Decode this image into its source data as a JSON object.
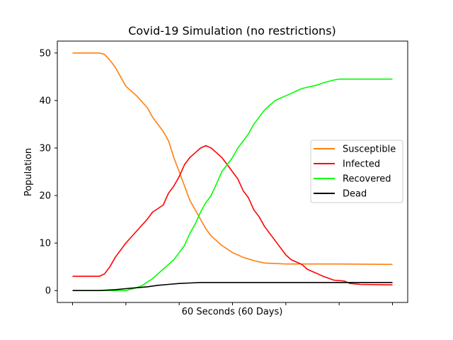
{
  "chart_data": {
    "type": "line",
    "title": "Covid-19 Simulation (no restrictions)",
    "xlabel": "60 Seconds (60 Days)",
    "ylabel": "Population",
    "xlim": [
      0,
      60
    ],
    "ylim": [
      -2.5,
      52.5
    ],
    "yticks": [
      0,
      10,
      20,
      30,
      40,
      50
    ],
    "xticks": [
      0,
      10,
      20,
      30,
      40,
      50,
      60
    ],
    "grid": false,
    "legend_position": "center-right",
    "series": [
      {
        "name": "Susceptible",
        "color": "#ff7f0e",
        "points": [
          [
            0,
            50
          ],
          [
            5,
            50
          ],
          [
            6,
            49.7
          ],
          [
            7,
            48.5
          ],
          [
            8,
            47
          ],
          [
            9,
            45
          ],
          [
            10,
            43
          ],
          [
            12,
            41
          ],
          [
            14,
            38.5
          ],
          [
            15,
            36.5
          ],
          [
            16,
            35
          ],
          [
            17,
            33.5
          ],
          [
            18,
            31.5
          ],
          [
            19,
            28
          ],
          [
            20,
            25
          ],
          [
            21,
            22
          ],
          [
            22,
            19
          ],
          [
            23,
            17
          ],
          [
            24,
            15
          ],
          [
            25,
            13
          ],
          [
            26,
            11.5
          ],
          [
            27,
            10.5
          ],
          [
            28,
            9.5
          ],
          [
            30,
            8
          ],
          [
            32,
            7
          ],
          [
            34,
            6.3
          ],
          [
            36,
            5.8
          ],
          [
            40,
            5.6
          ],
          [
            50,
            5.6
          ],
          [
            60,
            5.5
          ]
        ]
      },
      {
        "name": "Infected",
        "color": "#ff0000",
        "points": [
          [
            0,
            3
          ],
          [
            5,
            3
          ],
          [
            6,
            3.5
          ],
          [
            7,
            5
          ],
          [
            8,
            7
          ],
          [
            9,
            8.5
          ],
          [
            10,
            10
          ],
          [
            12,
            12.5
          ],
          [
            14,
            15
          ],
          [
            15,
            16.5
          ],
          [
            17,
            18
          ],
          [
            18,
            20.5
          ],
          [
            19,
            22
          ],
          [
            20,
            24
          ],
          [
            21,
            26.5
          ],
          [
            22,
            28
          ],
          [
            23,
            29
          ],
          [
            24,
            30
          ],
          [
            25,
            30.5
          ],
          [
            26,
            30
          ],
          [
            27,
            29
          ],
          [
            28,
            28
          ],
          [
            29,
            26.5
          ],
          [
            30,
            25
          ],
          [
            31,
            23.5
          ],
          [
            32,
            21
          ],
          [
            33,
            19.5
          ],
          [
            34,
            17
          ],
          [
            35,
            15.5
          ],
          [
            36,
            13.5
          ],
          [
            37,
            12
          ],
          [
            38,
            10.5
          ],
          [
            39,
            9
          ],
          [
            40,
            7.5
          ],
          [
            41,
            6.5
          ],
          [
            42,
            6
          ],
          [
            43,
            5.5
          ],
          [
            44,
            4.5
          ],
          [
            45,
            4
          ],
          [
            46,
            3.5
          ],
          [
            47,
            3
          ],
          [
            48,
            2.6
          ],
          [
            49,
            2.2
          ],
          [
            51,
            2
          ],
          [
            52,
            1.5
          ],
          [
            54,
            1.3
          ],
          [
            60,
            1.2
          ]
        ]
      },
      {
        "name": "Recovered",
        "color": "#00ff00",
        "points": [
          [
            0,
            0
          ],
          [
            10,
            0
          ],
          [
            11,
            0.3
          ],
          [
            12,
            0.6
          ],
          [
            13,
            1
          ],
          [
            14,
            1.8
          ],
          [
            15,
            2.5
          ],
          [
            16,
            3.5
          ],
          [
            17,
            4.5
          ],
          [
            18,
            5.5
          ],
          [
            19,
            6.5
          ],
          [
            20,
            8
          ],
          [
            21,
            9.5
          ],
          [
            22,
            12
          ],
          [
            23,
            14
          ],
          [
            24,
            16.5
          ],
          [
            25,
            18.5
          ],
          [
            26,
            20
          ],
          [
            27,
            22.5
          ],
          [
            28,
            25
          ],
          [
            29,
            26.5
          ],
          [
            30,
            28
          ],
          [
            31,
            30
          ],
          [
            32,
            31.5
          ],
          [
            33,
            33
          ],
          [
            34,
            35
          ],
          [
            35,
            36.5
          ],
          [
            36,
            38
          ],
          [
            37,
            39
          ],
          [
            38,
            40
          ],
          [
            39,
            40.5
          ],
          [
            40,
            41
          ],
          [
            41,
            41.5
          ],
          [
            42,
            42
          ],
          [
            43,
            42.5
          ],
          [
            44,
            42.8
          ],
          [
            45,
            43
          ],
          [
            46,
            43.3
          ],
          [
            47,
            43.7
          ],
          [
            48,
            44
          ],
          [
            49,
            44.3
          ],
          [
            50,
            44.5
          ],
          [
            60,
            44.5
          ]
        ]
      },
      {
        "name": "Dead",
        "color": "#000000",
        "points": [
          [
            0,
            0
          ],
          [
            5,
            0
          ],
          [
            8,
            0.2
          ],
          [
            10,
            0.4
          ],
          [
            12,
            0.6
          ],
          [
            14,
            0.8
          ],
          [
            16,
            1.1
          ],
          [
            18,
            1.3
          ],
          [
            20,
            1.5
          ],
          [
            22,
            1.6
          ],
          [
            24,
            1.7
          ],
          [
            60,
            1.7
          ]
        ]
      }
    ]
  }
}
